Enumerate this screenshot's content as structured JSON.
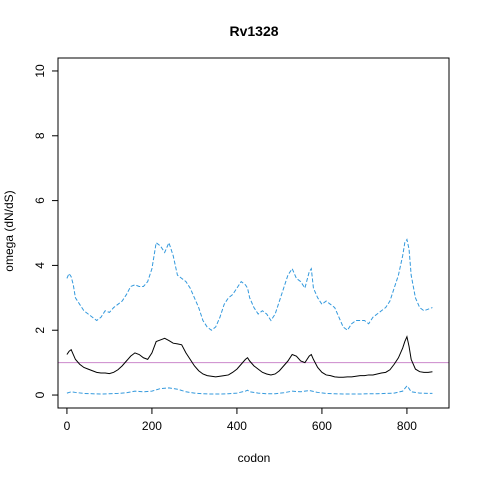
{
  "chart_data": {
    "type": "line",
    "title": "Rv1328",
    "xlabel": "codon",
    "ylabel": "omega (dN/dS)",
    "xlim": [
      -21,
      899
    ],
    "ylim": [
      -0.4,
      10.4
    ],
    "x_ticks": [
      0,
      200,
      400,
      600,
      800
    ],
    "y_ticks": [
      0,
      2,
      4,
      6,
      8,
      10
    ],
    "grid": false,
    "legend": "none",
    "reference_line": {
      "y": 1,
      "color": "#cc88cc"
    },
    "series": [
      {
        "role": "median",
        "style": "solid",
        "color": "#000000",
        "x": [
          0,
          5,
          10,
          15,
          20,
          30,
          40,
          50,
          60,
          70,
          80,
          90,
          100,
          110,
          120,
          130,
          140,
          150,
          160,
          170,
          180,
          190,
          200,
          210,
          220,
          230,
          240,
          250,
          260,
          270,
          280,
          290,
          300,
          310,
          320,
          330,
          340,
          350,
          360,
          370,
          380,
          390,
          400,
          410,
          420,
          425,
          430,
          440,
          450,
          460,
          470,
          480,
          490,
          500,
          510,
          520,
          530,
          540,
          550,
          560,
          570,
          575,
          580,
          590,
          600,
          610,
          620,
          630,
          640,
          650,
          660,
          670,
          680,
          690,
          700,
          710,
          720,
          730,
          740,
          750,
          760,
          770,
          780,
          790,
          795,
          800,
          805,
          810,
          820,
          830,
          840,
          850,
          860
        ],
        "y": [
          1.25,
          1.35,
          1.4,
          1.25,
          1.1,
          0.95,
          0.85,
          0.8,
          0.75,
          0.7,
          0.68,
          0.68,
          0.66,
          0.7,
          0.78,
          0.9,
          1.05,
          1.2,
          1.3,
          1.25,
          1.15,
          1.1,
          1.3,
          1.65,
          1.7,
          1.75,
          1.68,
          1.6,
          1.58,
          1.55,
          1.3,
          1.1,
          0.9,
          0.75,
          0.65,
          0.6,
          0.58,
          0.56,
          0.58,
          0.6,
          0.62,
          0.7,
          0.8,
          0.95,
          1.1,
          1.15,
          1.05,
          0.9,
          0.8,
          0.7,
          0.65,
          0.62,
          0.65,
          0.75,
          0.9,
          1.05,
          1.25,
          1.2,
          1.05,
          1.0,
          1.2,
          1.25,
          1.1,
          0.85,
          0.7,
          0.62,
          0.6,
          0.56,
          0.55,
          0.55,
          0.56,
          0.56,
          0.58,
          0.6,
          0.6,
          0.62,
          0.62,
          0.65,
          0.68,
          0.7,
          0.78,
          0.95,
          1.15,
          1.45,
          1.65,
          1.8,
          1.5,
          1.1,
          0.8,
          0.72,
          0.7,
          0.7,
          0.72
        ]
      },
      {
        "role": "upper",
        "style": "dashed",
        "color": "#3399dd",
        "x": [
          0,
          5,
          10,
          15,
          20,
          30,
          40,
          50,
          60,
          70,
          80,
          90,
          100,
          110,
          120,
          130,
          140,
          150,
          160,
          170,
          180,
          190,
          200,
          210,
          220,
          230,
          240,
          250,
          260,
          270,
          280,
          290,
          300,
          310,
          320,
          330,
          340,
          350,
          360,
          370,
          380,
          390,
          400,
          410,
          420,
          425,
          430,
          440,
          450,
          460,
          470,
          480,
          490,
          500,
          510,
          520,
          530,
          540,
          550,
          560,
          570,
          575,
          580,
          590,
          600,
          610,
          620,
          630,
          640,
          650,
          660,
          670,
          680,
          690,
          700,
          710,
          720,
          730,
          740,
          750,
          760,
          770,
          780,
          790,
          795,
          800,
          805,
          810,
          820,
          830,
          840,
          850,
          860
        ],
        "y": [
          3.6,
          3.75,
          3.65,
          3.4,
          3.0,
          2.8,
          2.6,
          2.5,
          2.4,
          2.3,
          2.4,
          2.6,
          2.55,
          2.7,
          2.8,
          2.9,
          3.1,
          3.35,
          3.4,
          3.35,
          3.35,
          3.5,
          3.9,
          4.7,
          4.6,
          4.4,
          4.7,
          4.3,
          3.7,
          3.6,
          3.5,
          3.3,
          3.0,
          2.7,
          2.3,
          2.1,
          2.0,
          2.1,
          2.4,
          2.8,
          3.0,
          3.1,
          3.3,
          3.5,
          3.4,
          3.3,
          3.0,
          2.7,
          2.5,
          2.6,
          2.5,
          2.3,
          2.5,
          2.9,
          3.3,
          3.7,
          3.9,
          3.6,
          3.5,
          3.3,
          3.8,
          3.9,
          3.3,
          3.0,
          2.8,
          2.9,
          2.8,
          2.7,
          2.4,
          2.1,
          2.0,
          2.2,
          2.3,
          2.3,
          2.3,
          2.2,
          2.4,
          2.5,
          2.6,
          2.7,
          2.9,
          3.3,
          3.7,
          4.3,
          4.7,
          4.8,
          4.5,
          3.7,
          3.0,
          2.7,
          2.6,
          2.65,
          2.7
        ]
      },
      {
        "role": "lower",
        "style": "dashed",
        "color": "#3399dd",
        "x": [
          0,
          10,
          20,
          40,
          60,
          80,
          100,
          120,
          140,
          160,
          180,
          200,
          220,
          240,
          260,
          280,
          300,
          320,
          340,
          360,
          380,
          400,
          420,
          425,
          430,
          450,
          470,
          490,
          510,
          530,
          550,
          570,
          590,
          610,
          630,
          650,
          670,
          690,
          710,
          730,
          750,
          770,
          790,
          800,
          805,
          810,
          830,
          850,
          860
        ],
        "y": [
          0.06,
          0.1,
          0.08,
          0.05,
          0.04,
          0.03,
          0.04,
          0.05,
          0.07,
          0.12,
          0.1,
          0.12,
          0.2,
          0.22,
          0.18,
          0.1,
          0.06,
          0.04,
          0.03,
          0.03,
          0.04,
          0.06,
          0.12,
          0.15,
          0.1,
          0.06,
          0.04,
          0.04,
          0.07,
          0.12,
          0.1,
          0.14,
          0.08,
          0.05,
          0.04,
          0.03,
          0.03,
          0.03,
          0.04,
          0.04,
          0.05,
          0.06,
          0.12,
          0.28,
          0.2,
          0.1,
          0.06,
          0.05,
          0.05
        ]
      }
    ]
  }
}
